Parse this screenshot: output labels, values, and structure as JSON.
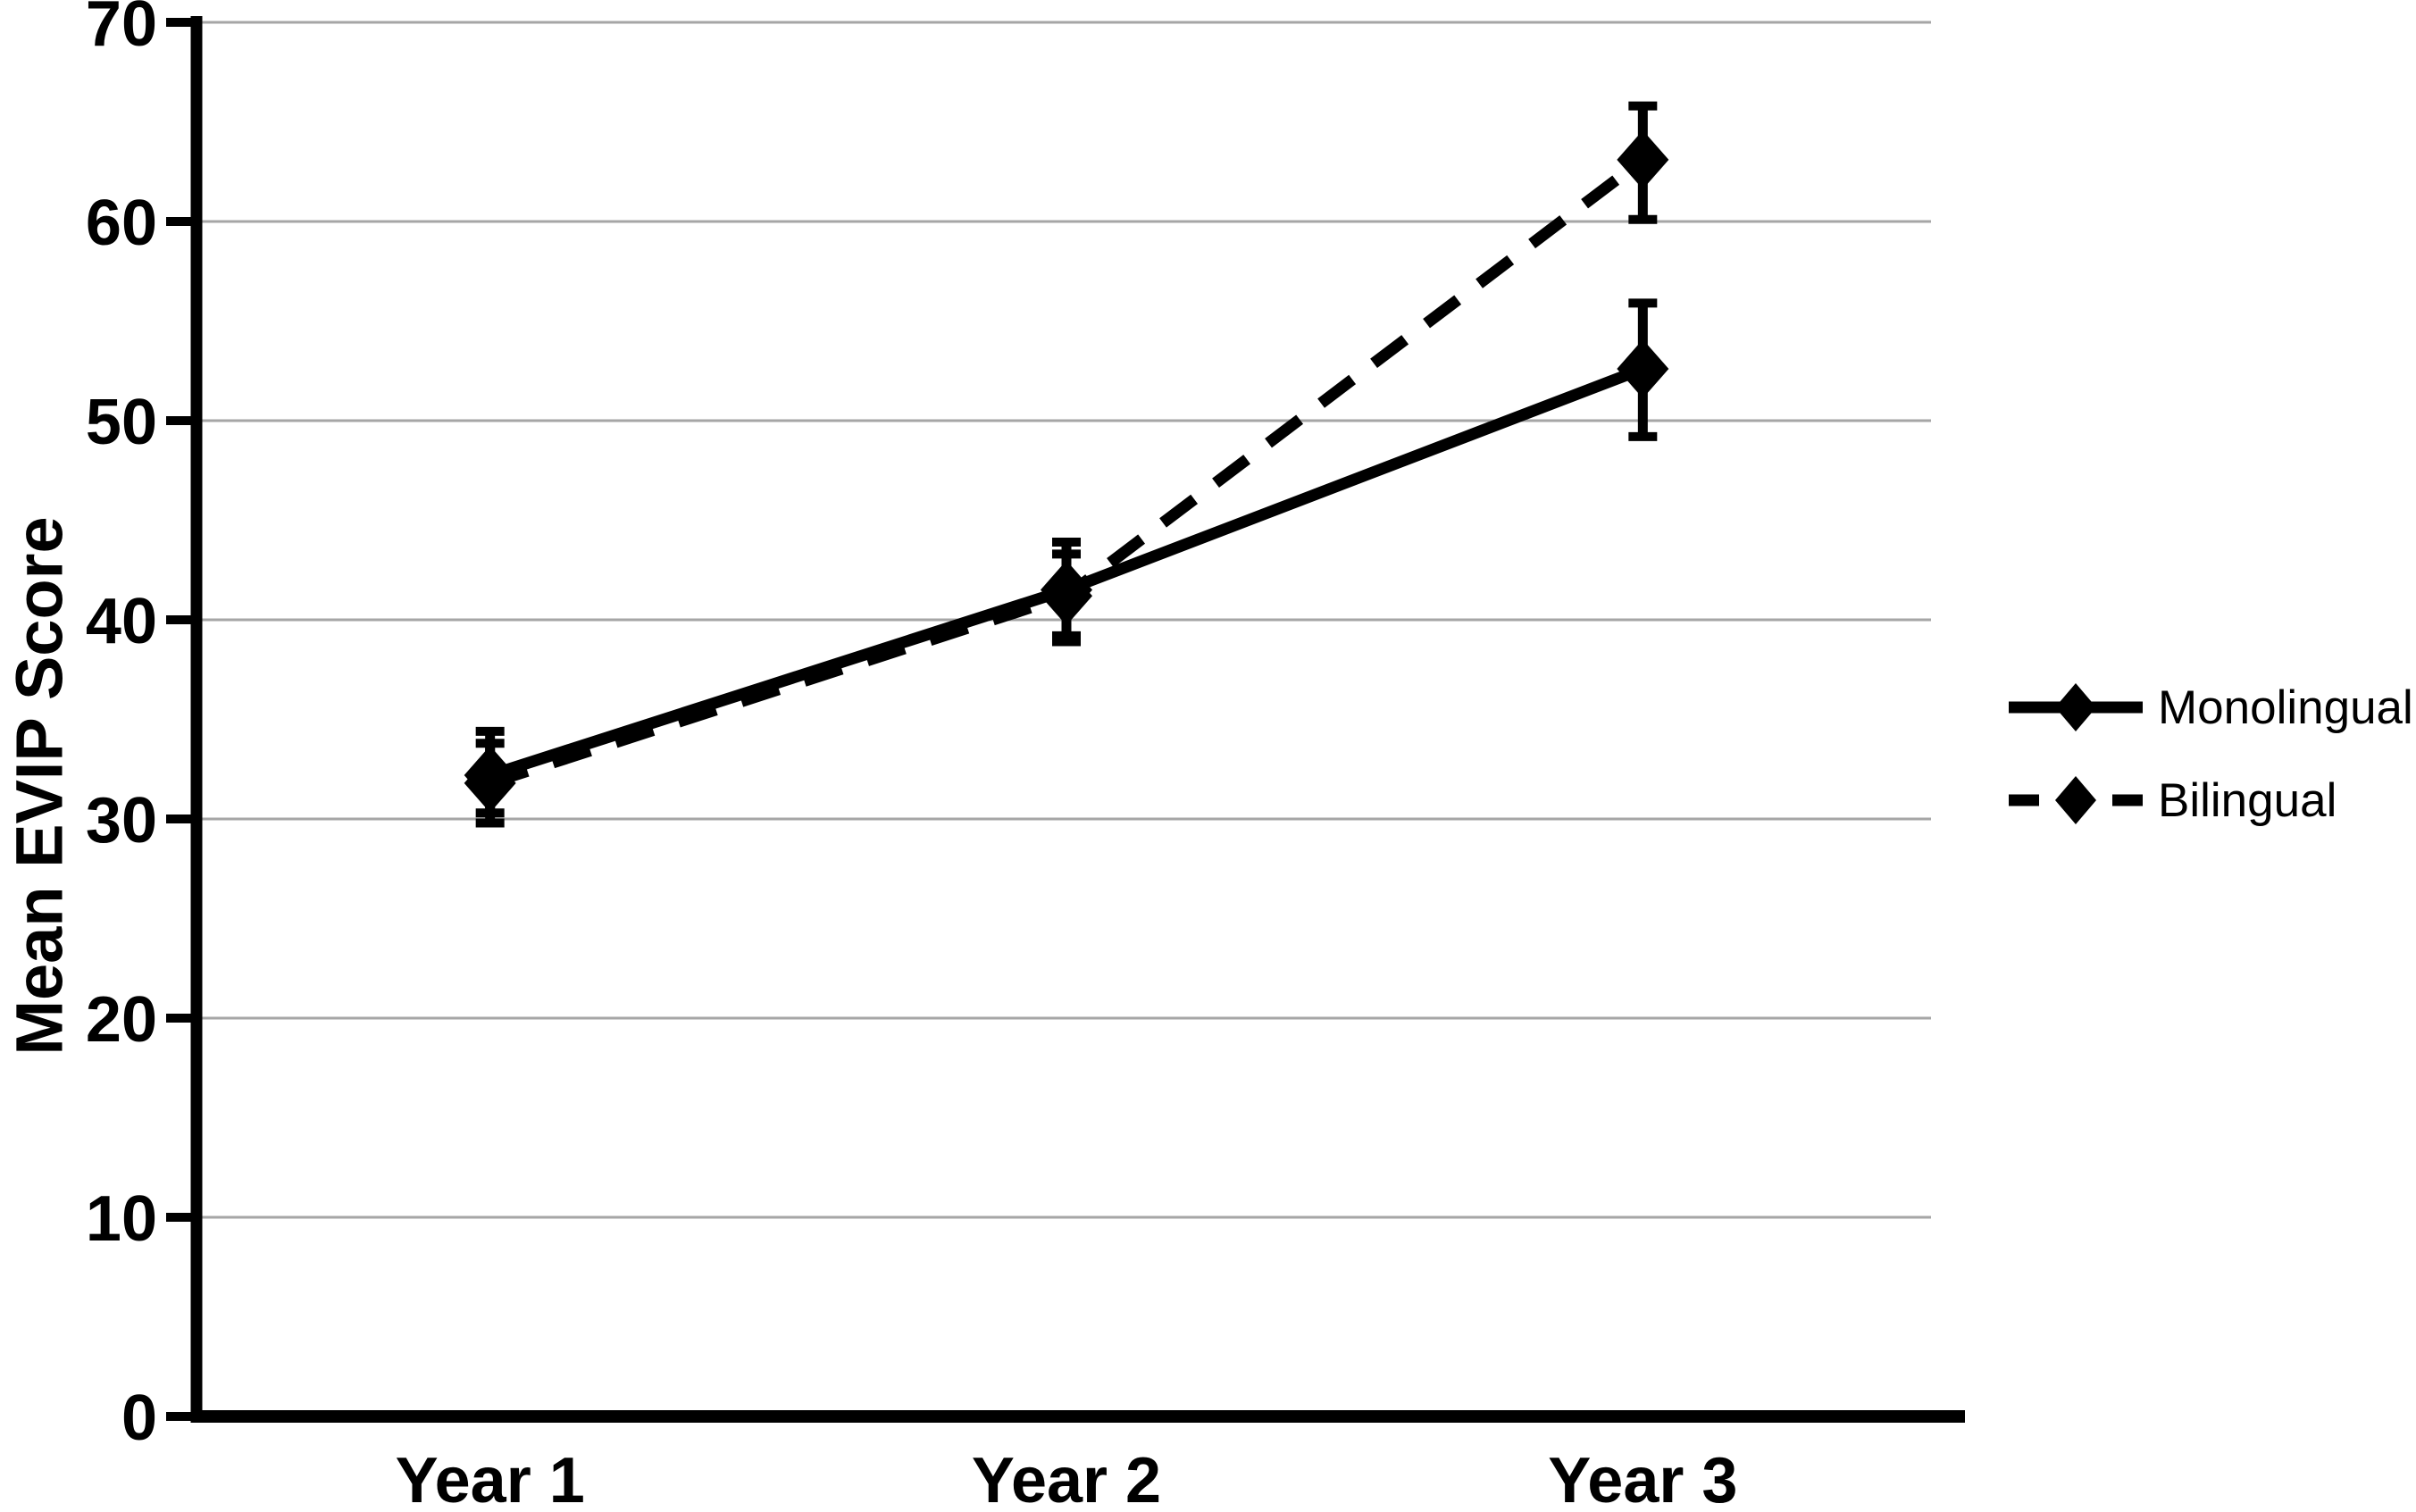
{
  "figure": {
    "background": "#ffffff"
  },
  "chart_data": {
    "type": "line",
    "title": "",
    "xlabel": "",
    "ylabel": "Mean EVIP Score",
    "categories": [
      "Year 1",
      "Year 2",
      "Year 3"
    ],
    "ylim": [
      0,
      70
    ],
    "yticks": [
      0,
      10,
      20,
      30,
      40,
      50,
      60,
      70
    ],
    "grid": "horizontal",
    "legend_position": "outside-right",
    "color": "#000000",
    "gridline_color": "#a6a6a6",
    "series": [
      {
        "name": "Monolingual",
        "line_style": "solid",
        "marker": "diamond",
        "values": [
          32.2,
          41.5,
          52.6
        ],
        "error_low": [
          30.3,
          39.2,
          49.2
        ],
        "error_high": [
          34.4,
          43.9,
          55.9
        ]
      },
      {
        "name": "Bilingual",
        "line_style": "dashed",
        "marker": "diamond",
        "values": [
          31.8,
          41.2,
          63.1
        ],
        "error_low": [
          29.8,
          38.9,
          60.1
        ],
        "error_high": [
          33.8,
          43.3,
          65.8
        ]
      }
    ]
  }
}
